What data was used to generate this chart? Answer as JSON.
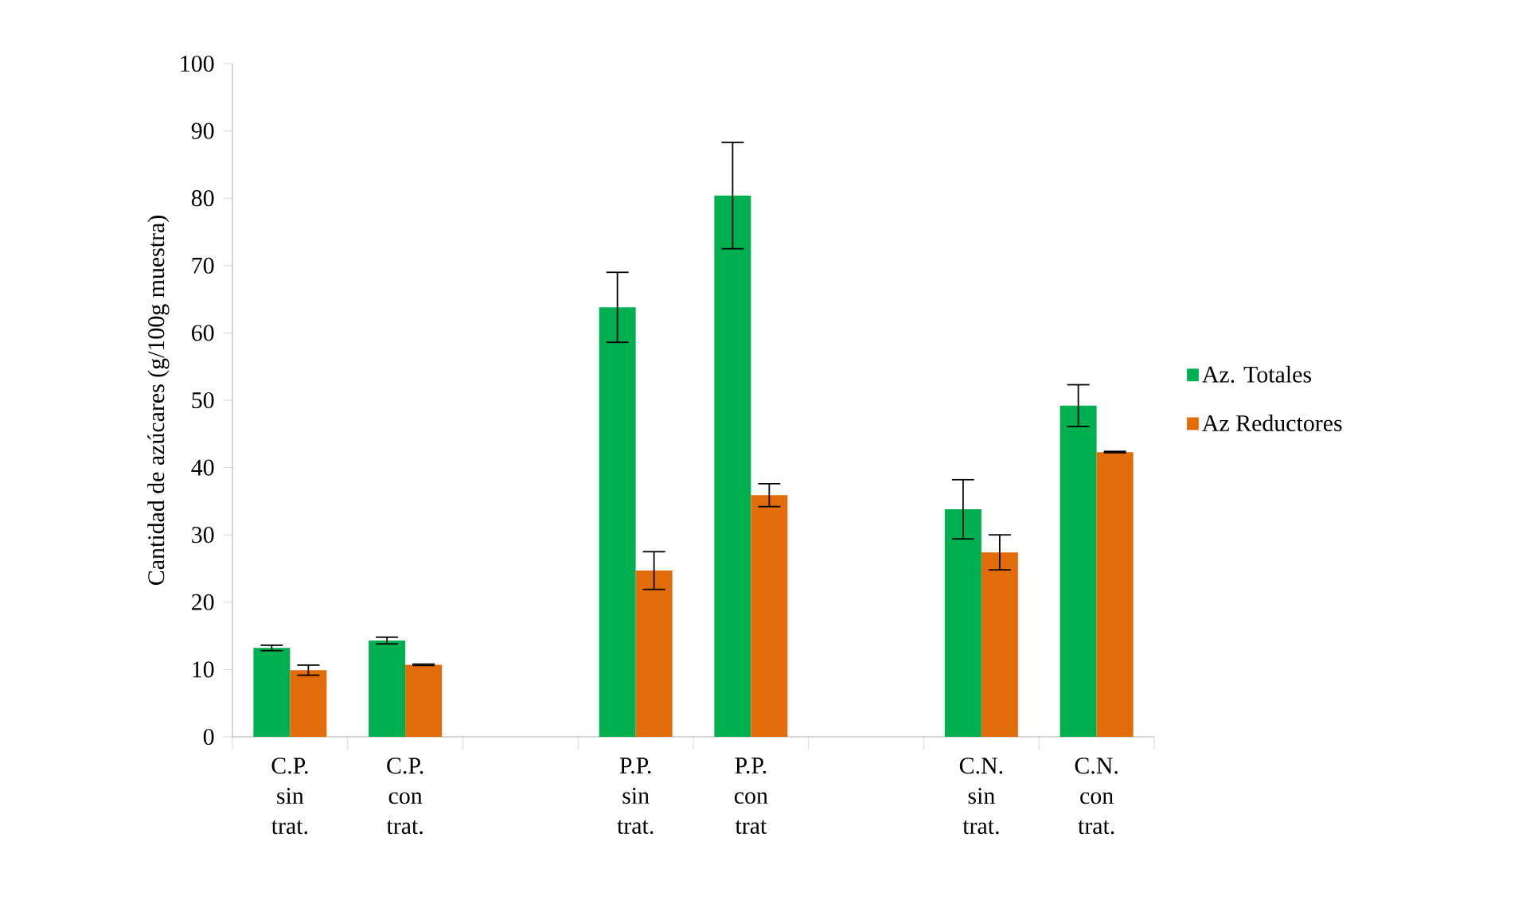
{
  "chart_data": {
    "type": "bar",
    "ylabel": "Cantidad de azúcares (g/100g muestra)",
    "categories": [
      "C.P. sin trat.",
      "C.P. con trat.",
      null,
      "P.P. sin trat.",
      "P.P. con trat",
      null,
      "C.N. sin trat.",
      "C.N. con trat."
    ],
    "series": [
      {
        "name": "Az. Totales",
        "color": "#00b050",
        "values": [
          13.2,
          14.3,
          null,
          63.8,
          80.4,
          null,
          33.8,
          49.2
        ],
        "errors": [
          0.4,
          0.5,
          null,
          5.2,
          7.9,
          null,
          4.4,
          3.1
        ]
      },
      {
        "name": "Az Reductores",
        "color": "#e36c0a",
        "values": [
          9.9,
          10.7,
          null,
          24.7,
          35.9,
          null,
          27.4,
          42.3
        ],
        "errors": [
          0.75,
          0.1,
          null,
          2.8,
          1.7,
          null,
          2.6,
          0.1
        ]
      }
    ],
    "ylim": [
      0,
      100
    ],
    "yticks": [
      0,
      10,
      20,
      30,
      40,
      50,
      60,
      70,
      80,
      90,
      100
    ],
    "legend": "right",
    "grid": false
  }
}
